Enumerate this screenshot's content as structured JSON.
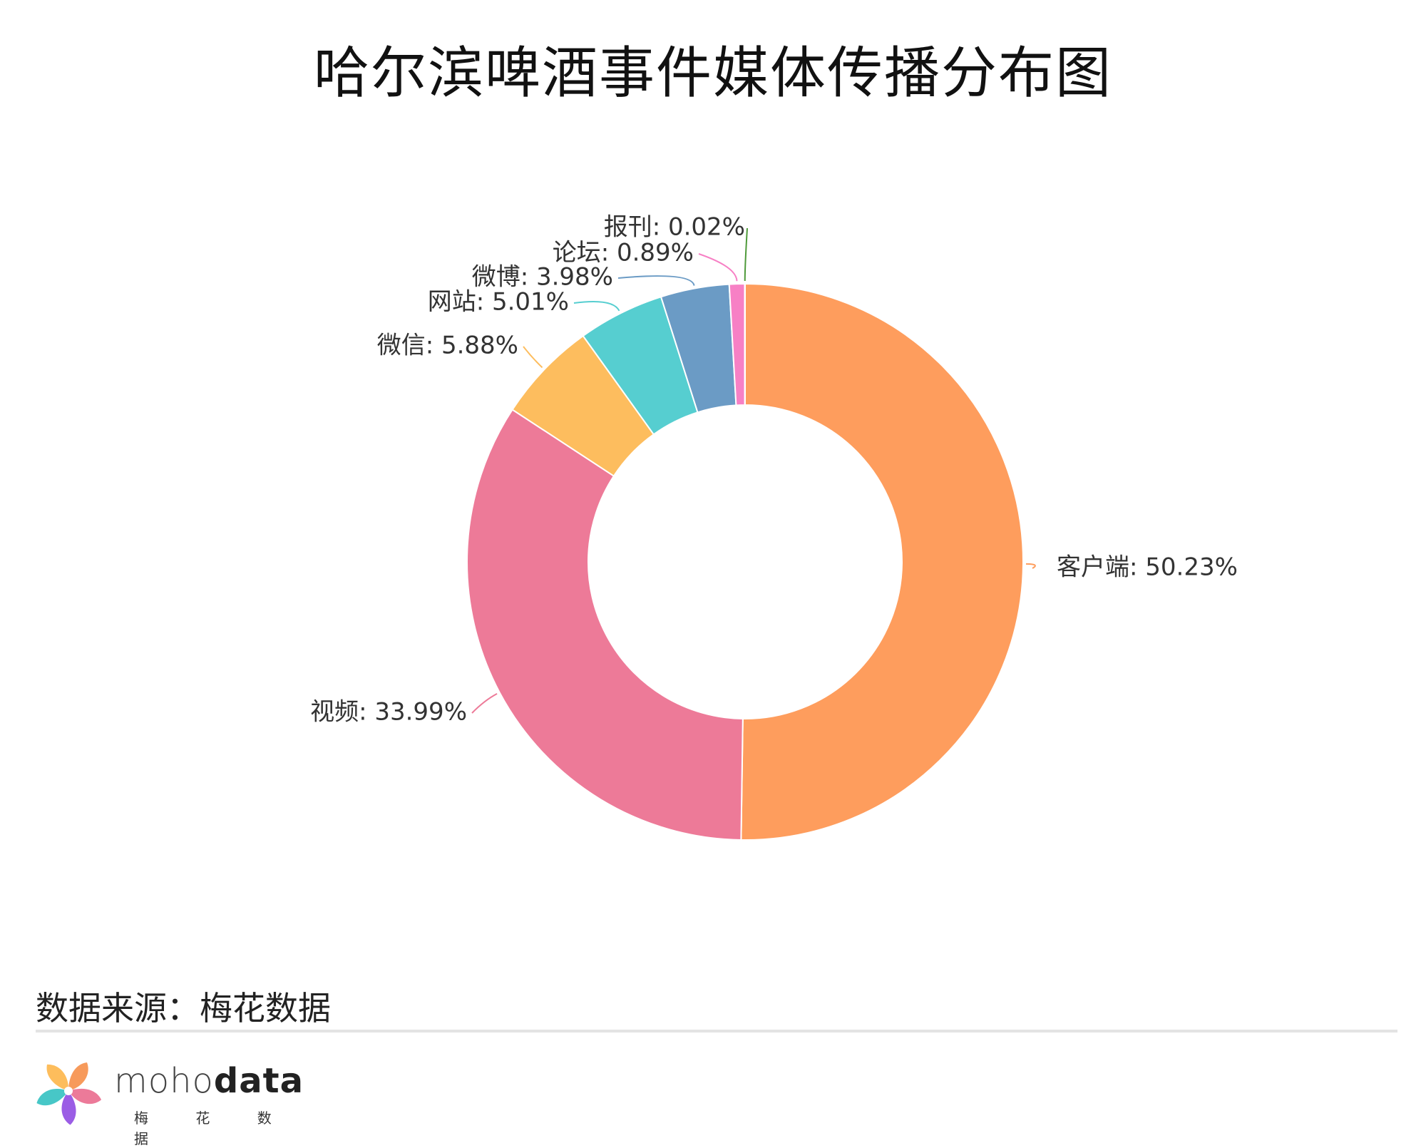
{
  "title": "哈尔滨啤酒事件媒体传播分布图",
  "source": "数据来源：梅花数据",
  "logo": {
    "wordmark_light": "moho",
    "wordmark_bold": "data",
    "subtitle": "梅 花 数 据",
    "colors": [
      "#f79a5b",
      "#ec7a99",
      "#9b5de5",
      "#47c7c7",
      "#fdbd5c"
    ]
  },
  "chart_data": {
    "type": "pie",
    "style": "donut",
    "title": "哈尔滨啤酒事件媒体传播分布图",
    "start_angle": "12 o'clock, clockwise",
    "slices": [
      {
        "name": "客户端",
        "value": 50.23,
        "label": "客户端: 50.23%",
        "color": "#fe9d5d"
      },
      {
        "name": "视频",
        "value": 33.99,
        "label": "视频: 33.99%",
        "color": "#ed7a98"
      },
      {
        "name": "微信",
        "value": 5.88,
        "label": "微信: 5.88%",
        "color": "#fdbd5e"
      },
      {
        "name": "网站",
        "value": 5.01,
        "label": "网站: 5.01%",
        "color": "#56ced0"
      },
      {
        "name": "微博",
        "value": 3.98,
        "label": "微博: 3.98%",
        "color": "#6b9bc5"
      },
      {
        "name": "论坛",
        "value": 0.89,
        "label": "论坛: 0.89%",
        "color": "#f780c5"
      },
      {
        "name": "报刊",
        "value": 0.02,
        "label": "报刊: 0.02%",
        "color": "#4e9a3a"
      }
    ]
  }
}
